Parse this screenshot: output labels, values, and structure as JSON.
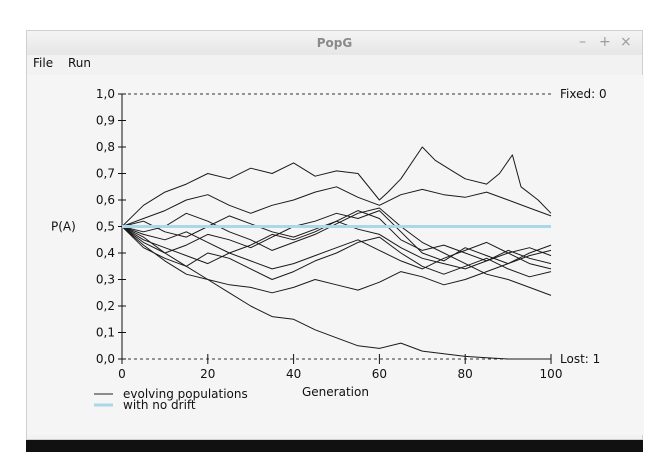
{
  "window": {
    "title": "PopG",
    "controls": {
      "minimize": "–",
      "maximize": "+",
      "close": "×"
    }
  },
  "menu": {
    "file": "File",
    "run": "Run"
  },
  "chart_data": {
    "type": "line",
    "ylabel": "P(A)",
    "xlabel": "Generation",
    "xlim": [
      0,
      100
    ],
    "ylim": [
      0,
      1
    ],
    "x_ticks": [
      "0",
      "20",
      "40",
      "60",
      "80",
      "100"
    ],
    "y_ticks": [
      "0,0",
      "0,1",
      "0,2",
      "0,3",
      "0,4",
      "0,5",
      "0,6",
      "0,7",
      "0,8",
      "0,9",
      "1,0"
    ],
    "fixed_label": "Fixed: 0",
    "lost_label": "Lost: 1",
    "no_drift_value": 0.5,
    "legend": [
      {
        "label": "evolving populations",
        "color": "#222222"
      },
      {
        "label": "with no drift",
        "color": "#a8d8ea"
      }
    ],
    "series": [
      {
        "values": [
          [
            0,
            0.5
          ],
          [
            5,
            0.58
          ],
          [
            10,
            0.63
          ],
          [
            15,
            0.66
          ],
          [
            20,
            0.7
          ],
          [
            25,
            0.68
          ],
          [
            30,
            0.72
          ],
          [
            35,
            0.7
          ],
          [
            40,
            0.74
          ],
          [
            45,
            0.69
          ],
          [
            50,
            0.71
          ],
          [
            55,
            0.7
          ],
          [
            60,
            0.6
          ],
          [
            62,
            0.63
          ],
          [
            65,
            0.68
          ],
          [
            70,
            0.8
          ],
          [
            73,
            0.75
          ],
          [
            77,
            0.71
          ],
          [
            80,
            0.68
          ],
          [
            85,
            0.66
          ],
          [
            88,
            0.7
          ],
          [
            91,
            0.77
          ],
          [
            93,
            0.65
          ],
          [
            97,
            0.6
          ],
          [
            100,
            0.55
          ]
        ]
      },
      {
        "values": [
          [
            0,
            0.5
          ],
          [
            5,
            0.53
          ],
          [
            10,
            0.56
          ],
          [
            15,
            0.6
          ],
          [
            20,
            0.62
          ],
          [
            25,
            0.58
          ],
          [
            30,
            0.55
          ],
          [
            35,
            0.58
          ],
          [
            40,
            0.6
          ],
          [
            45,
            0.63
          ],
          [
            50,
            0.65
          ],
          [
            55,
            0.61
          ],
          [
            60,
            0.58
          ],
          [
            65,
            0.62
          ],
          [
            70,
            0.64
          ],
          [
            75,
            0.62
          ],
          [
            80,
            0.61
          ],
          [
            85,
            0.63
          ],
          [
            90,
            0.6
          ],
          [
            95,
            0.57
          ],
          [
            100,
            0.54
          ]
        ]
      },
      {
        "values": [
          [
            0,
            0.5
          ],
          [
            5,
            0.46
          ],
          [
            10,
            0.4
          ],
          [
            15,
            0.35
          ],
          [
            20,
            0.3
          ],
          [
            25,
            0.25
          ],
          [
            30,
            0.2
          ],
          [
            35,
            0.16
          ],
          [
            40,
            0.15
          ],
          [
            45,
            0.11
          ],
          [
            50,
            0.08
          ],
          [
            55,
            0.05
          ],
          [
            60,
            0.04
          ],
          [
            65,
            0.06
          ],
          [
            70,
            0.03
          ],
          [
            75,
            0.02
          ],
          [
            80,
            0.01
          ],
          [
            85,
            0.005
          ],
          [
            90,
            0
          ],
          [
            100,
            0
          ]
        ]
      },
      {
        "values": [
          [
            0,
            0.5
          ],
          [
            5,
            0.48
          ],
          [
            10,
            0.5
          ],
          [
            15,
            0.55
          ],
          [
            20,
            0.52
          ],
          [
            25,
            0.48
          ],
          [
            30,
            0.45
          ],
          [
            35,
            0.41
          ],
          [
            40,
            0.44
          ],
          [
            45,
            0.47
          ],
          [
            50,
            0.51
          ],
          [
            55,
            0.55
          ],
          [
            60,
            0.57
          ],
          [
            65,
            0.5
          ],
          [
            70,
            0.44
          ],
          [
            75,
            0.4
          ],
          [
            80,
            0.36
          ],
          [
            85,
            0.32
          ],
          [
            90,
            0.3
          ],
          [
            95,
            0.27
          ],
          [
            100,
            0.24
          ]
        ]
      },
      {
        "values": [
          [
            0,
            0.5
          ],
          [
            5,
            0.44
          ],
          [
            10,
            0.4
          ],
          [
            15,
            0.43
          ],
          [
            20,
            0.47
          ],
          [
            25,
            0.45
          ],
          [
            30,
            0.42
          ],
          [
            35,
            0.46
          ],
          [
            40,
            0.5
          ],
          [
            45,
            0.52
          ],
          [
            50,
            0.55
          ],
          [
            55,
            0.53
          ],
          [
            60,
            0.56
          ],
          [
            65,
            0.48
          ],
          [
            70,
            0.4
          ],
          [
            75,
            0.37
          ],
          [
            80,
            0.42
          ],
          [
            85,
            0.39
          ],
          [
            90,
            0.36
          ],
          [
            95,
            0.4
          ],
          [
            100,
            0.43
          ]
        ]
      },
      {
        "values": [
          [
            0,
            0.5
          ],
          [
            5,
            0.42
          ],
          [
            10,
            0.38
          ],
          [
            15,
            0.35
          ],
          [
            20,
            0.4
          ],
          [
            25,
            0.38
          ],
          [
            30,
            0.34
          ],
          [
            35,
            0.3
          ],
          [
            40,
            0.33
          ],
          [
            45,
            0.37
          ],
          [
            50,
            0.4
          ],
          [
            55,
            0.44
          ],
          [
            60,
            0.46
          ],
          [
            65,
            0.4
          ],
          [
            70,
            0.35
          ],
          [
            75,
            0.32
          ],
          [
            80,
            0.35
          ],
          [
            85,
            0.38
          ],
          [
            90,
            0.34
          ],
          [
            95,
            0.31
          ],
          [
            100,
            0.33
          ]
        ]
      },
      {
        "values": [
          [
            0,
            0.5
          ],
          [
            5,
            0.47
          ],
          [
            10,
            0.45
          ],
          [
            15,
            0.48
          ],
          [
            20,
            0.44
          ],
          [
            25,
            0.4
          ],
          [
            30,
            0.43
          ],
          [
            35,
            0.47
          ],
          [
            40,
            0.45
          ],
          [
            45,
            0.48
          ],
          [
            50,
            0.52
          ],
          [
            55,
            0.56
          ],
          [
            60,
            0.53
          ],
          [
            65,
            0.45
          ],
          [
            70,
            0.41
          ],
          [
            75,
            0.43
          ],
          [
            80,
            0.4
          ],
          [
            85,
            0.37
          ],
          [
            90,
            0.41
          ],
          [
            95,
            0.38
          ],
          [
            100,
            0.36
          ]
        ]
      },
      {
        "values": [
          [
            0,
            0.5
          ],
          [
            5,
            0.43
          ],
          [
            10,
            0.37
          ],
          [
            15,
            0.32
          ],
          [
            20,
            0.3
          ],
          [
            25,
            0.28
          ],
          [
            30,
            0.27
          ],
          [
            35,
            0.25
          ],
          [
            40,
            0.27
          ],
          [
            45,
            0.3
          ],
          [
            50,
            0.28
          ],
          [
            55,
            0.26
          ],
          [
            60,
            0.29
          ],
          [
            65,
            0.33
          ],
          [
            70,
            0.31
          ],
          [
            75,
            0.28
          ],
          [
            80,
            0.3
          ],
          [
            85,
            0.33
          ],
          [
            90,
            0.36
          ],
          [
            95,
            0.39
          ],
          [
            100,
            0.41
          ]
        ]
      },
      {
        "values": [
          [
            0,
            0.5
          ],
          [
            5,
            0.52
          ],
          [
            10,
            0.48
          ],
          [
            15,
            0.46
          ],
          [
            20,
            0.5
          ],
          [
            25,
            0.54
          ],
          [
            30,
            0.51
          ],
          [
            35,
            0.48
          ],
          [
            40,
            0.46
          ],
          [
            45,
            0.49
          ],
          [
            50,
            0.52
          ],
          [
            55,
            0.49
          ],
          [
            60,
            0.47
          ],
          [
            65,
            0.42
          ],
          [
            70,
            0.38
          ],
          [
            75,
            0.36
          ],
          [
            80,
            0.34
          ],
          [
            85,
            0.37
          ],
          [
            90,
            0.4
          ],
          [
            95,
            0.42
          ],
          [
            100,
            0.39
          ]
        ]
      },
      {
        "values": [
          [
            0,
            0.5
          ],
          [
            5,
            0.45
          ],
          [
            10,
            0.42
          ],
          [
            15,
            0.39
          ],
          [
            20,
            0.36
          ],
          [
            25,
            0.4
          ],
          [
            30,
            0.37
          ],
          [
            35,
            0.34
          ],
          [
            40,
            0.36
          ],
          [
            45,
            0.39
          ],
          [
            50,
            0.42
          ],
          [
            55,
            0.45
          ],
          [
            60,
            0.41
          ],
          [
            65,
            0.37
          ],
          [
            70,
            0.34
          ],
          [
            75,
            0.38
          ],
          [
            80,
            0.41
          ],
          [
            85,
            0.44
          ],
          [
            90,
            0.4
          ],
          [
            95,
            0.36
          ],
          [
            100,
            0.34
          ]
        ]
      }
    ]
  }
}
